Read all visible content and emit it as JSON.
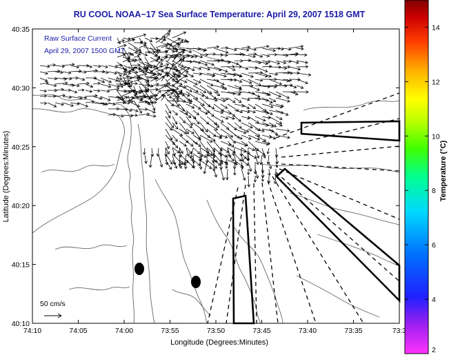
{
  "title": "RU COOL  NOAA−17  Sea Surface Temperature:  April 29, 2007 1518 GMT",
  "inset": {
    "line1": "Raw Surface Current",
    "line2": "April 29, 2007 1500 GMT"
  },
  "scale": {
    "label": "50 cm/s"
  },
  "x_axis": {
    "label": "Longitude (Degrees:Minutes)",
    "ticks": [
      "74:10",
      "74:05",
      "74:00",
      "73:55",
      "73:50",
      "73:45",
      "73:40",
      "73:35",
      "73:3"
    ]
  },
  "y_axis": {
    "label": "Latitude (Degrees:Minutes)",
    "ticks": [
      "40:35",
      "40:30",
      "40:25",
      "40:20",
      "40:15",
      "40:10"
    ]
  },
  "colorbar": {
    "label": "Temperature (°C)",
    "ticks": [
      "14",
      "12",
      "10",
      "8",
      "6",
      "4",
      "2"
    ],
    "range": [
      2,
      15
    ],
    "colors": [
      "#ff00ff",
      "#8000ff",
      "#0000ff",
      "#0080ff",
      "#00ffff",
      "#00ff80",
      "#00ff00",
      "#80ff00",
      "#ffff00",
      "#ffc000",
      "#ff8000",
      "#ff0000",
      "#c00000",
      "#800000"
    ]
  }
}
